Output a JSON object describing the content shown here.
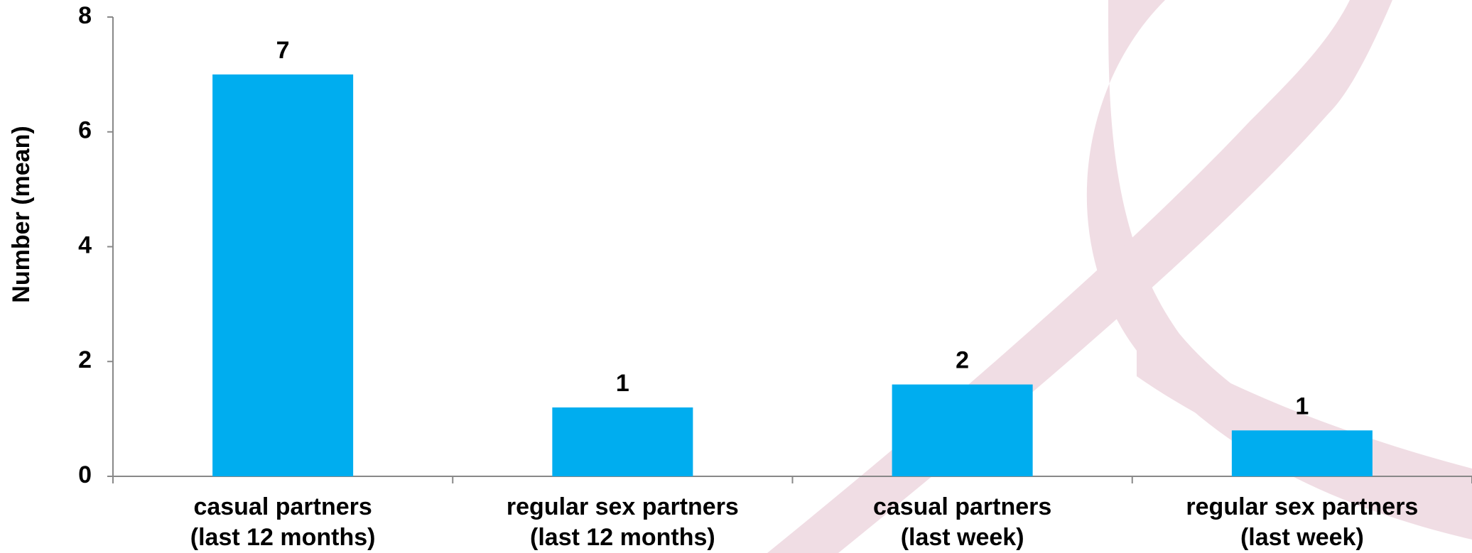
{
  "chart_data": {
    "type": "bar",
    "y_label": "Number (mean)",
    "categories": [
      [
        "casual partners",
        "(last 12 months)"
      ],
      [
        "regular sex partners",
        "(last 12 months)"
      ],
      [
        "casual partners",
        "(last week)"
      ],
      [
        "regular sex partners",
        "(last week)"
      ]
    ],
    "values": [
      7.0,
      1.2,
      1.6,
      0.8
    ],
    "value_labels": [
      "7",
      "1",
      "2",
      "1"
    ],
    "color": "#00adef",
    "ylim": [
      0,
      8
    ],
    "yticks": [
      0,
      2,
      4,
      6,
      8
    ],
    "grid": false
  }
}
